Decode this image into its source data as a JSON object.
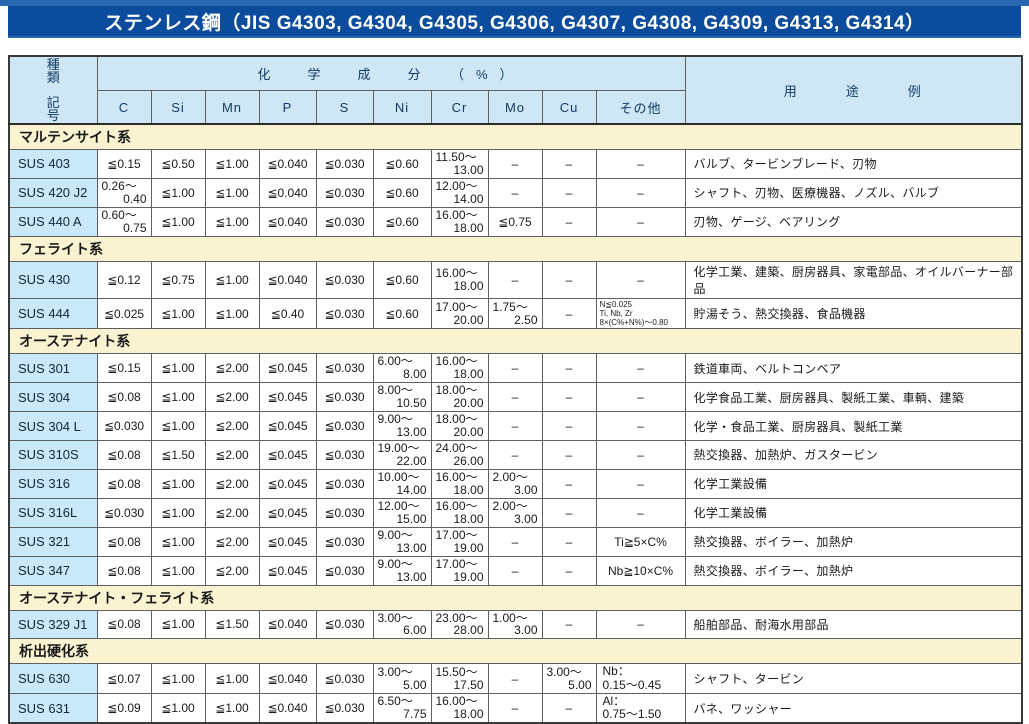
{
  "page": {
    "title": "ステンレス鋼（JIS G4303, G4304, G4305, G4306, G4307, G4308, G4309, G4313, G4314）"
  },
  "colors": {
    "top_rule_blue": "#2a67b2",
    "title_bar_blue": "#0b4c9c",
    "header_light_blue": "#cfe6f4",
    "grade_cell_blue": "#c9e9fa",
    "section_yellow": "#faf3d2",
    "border_gray": "#5f6062"
  },
  "table": {
    "kind_header": [
      "種　類",
      "記　号"
    ],
    "chem_header": "化　学　成　分　（%）",
    "usage_header": "用　途　例",
    "elements": [
      "C",
      "Si",
      "Mn",
      "P",
      "S",
      "Ni",
      "Cr",
      "Mo",
      "Cu",
      "その他"
    ],
    "sections": [
      {
        "name": "マルテンサイト系",
        "rows": [
          {
            "code": "SUS 403",
            "values": [
              {
                "v": "≦0.15"
              },
              {
                "v": "≦0.50"
              },
              {
                "v": "≦1.00"
              },
              {
                "v": "≦0.040"
              },
              {
                "v": "≦0.030"
              },
              {
                "v": "≦0.60"
              },
              {
                "v": "11.50～\n13.00",
                "s": "range"
              },
              {
                "v": "–"
              },
              {
                "v": "–"
              },
              {
                "v": "–"
              }
            ],
            "usage": "バルブ、タービンブレード、刃物"
          },
          {
            "code": "SUS 420 J2",
            "values": [
              {
                "v": "0.26～\n0.40",
                "s": "range"
              },
              {
                "v": "≦1.00"
              },
              {
                "v": "≦1.00"
              },
              {
                "v": "≦0.040"
              },
              {
                "v": "≦0.030"
              },
              {
                "v": "≦0.60"
              },
              {
                "v": "12.00～\n14.00",
                "s": "range"
              },
              {
                "v": "–"
              },
              {
                "v": "–"
              },
              {
                "v": "–"
              }
            ],
            "usage": "シャフト、刃物、医療機器、ノズル、バルブ"
          },
          {
            "code": "SUS 440 A",
            "values": [
              {
                "v": "0.60～\n0.75",
                "s": "range"
              },
              {
                "v": "≦1.00"
              },
              {
                "v": "≦1.00"
              },
              {
                "v": "≦0.040"
              },
              {
                "v": "≦0.030"
              },
              {
                "v": "≦0.60"
              },
              {
                "v": "16.00～\n18.00",
                "s": "range"
              },
              {
                "v": "≦0.75"
              },
              {
                "v": "–"
              },
              {
                "v": "–"
              }
            ],
            "usage": "刃物、ゲージ、ベアリング"
          }
        ]
      },
      {
        "name": "フェライト系",
        "rows": [
          {
            "code": "SUS 430",
            "values": [
              {
                "v": "≦0.12"
              },
              {
                "v": "≦0.75"
              },
              {
                "v": "≦1.00"
              },
              {
                "v": "≦0.040"
              },
              {
                "v": "≦0.030"
              },
              {
                "v": "≦0.60"
              },
              {
                "v": "16.00～\n18.00",
                "s": "range"
              },
              {
                "v": "–"
              },
              {
                "v": "–"
              },
              {
                "v": "–"
              }
            ],
            "usage": "化学工業、建築、厨房器具、家電部品、オイルバーナー部品"
          },
          {
            "code": "SUS 444",
            "values": [
              {
                "v": "≦0.025"
              },
              {
                "v": "≦1.00"
              },
              {
                "v": "≦1.00"
              },
              {
                "v": "≦0.40"
              },
              {
                "v": "≦0.030"
              },
              {
                "v": "≦0.60"
              },
              {
                "v": "17.00～\n20.00",
                "s": "range"
              },
              {
                "v": "1.75～\n2.50",
                "s": "range"
              },
              {
                "v": "–"
              },
              {
                "v": "N≦0.025\nTi, Nb, Zr\n8×(C%+N%)～0.80",
                "s": "small"
              }
            ],
            "usage": "貯湯そう、熱交換器、食品機器"
          }
        ]
      },
      {
        "name": "オーステナイト系",
        "rows": [
          {
            "code": "SUS 301",
            "values": [
              {
                "v": "≦0.15"
              },
              {
                "v": "≦1.00"
              },
              {
                "v": "≦2.00"
              },
              {
                "v": "≦0.045"
              },
              {
                "v": "≦0.030"
              },
              {
                "v": "6.00～\n8.00",
                "s": "range"
              },
              {
                "v": "16.00～\n18.00",
                "s": "range"
              },
              {
                "v": "–"
              },
              {
                "v": "–"
              },
              {
                "v": "–"
              }
            ],
            "usage": "鉄道車両、ベルトコンベア"
          },
          {
            "code": "SUS 304",
            "values": [
              {
                "v": "≦0.08"
              },
              {
                "v": "≦1.00"
              },
              {
                "v": "≦2.00"
              },
              {
                "v": "≦0.045"
              },
              {
                "v": "≦0.030"
              },
              {
                "v": "8.00～\n10.50",
                "s": "range"
              },
              {
                "v": "18.00～\n20.00",
                "s": "range"
              },
              {
                "v": "–"
              },
              {
                "v": "–"
              },
              {
                "v": "–"
              }
            ],
            "usage": "化学食品工業、厨房器具、製紙工業、車輌、建築"
          },
          {
            "code": "SUS 304 L",
            "values": [
              {
                "v": "≦0.030"
              },
              {
                "v": "≦1.00"
              },
              {
                "v": "≦2.00"
              },
              {
                "v": "≦0.045"
              },
              {
                "v": "≦0.030"
              },
              {
                "v": "9.00～\n13.00",
                "s": "range"
              },
              {
                "v": "18.00～\n20.00",
                "s": "range"
              },
              {
                "v": "–"
              },
              {
                "v": "–"
              },
              {
                "v": "–"
              }
            ],
            "usage": "化学・食品工業、厨房器具、製紙工業"
          },
          {
            "code": "SUS 310S",
            "values": [
              {
                "v": "≦0.08"
              },
              {
                "v": "≦1.50"
              },
              {
                "v": "≦2.00"
              },
              {
                "v": "≦0.045"
              },
              {
                "v": "≦0.030"
              },
              {
                "v": "19.00～\n22.00",
                "s": "range"
              },
              {
                "v": "24.00～\n26.00",
                "s": "range"
              },
              {
                "v": "–"
              },
              {
                "v": "–"
              },
              {
                "v": "–"
              }
            ],
            "usage": "熱交換器、加熱炉、ガスタービン"
          },
          {
            "code": "SUS 316",
            "values": [
              {
                "v": "≦0.08"
              },
              {
                "v": "≦1.00"
              },
              {
                "v": "≦2.00"
              },
              {
                "v": "≦0.045"
              },
              {
                "v": "≦0.030"
              },
              {
                "v": "10.00～\n14.00",
                "s": "range"
              },
              {
                "v": "16.00～\n18.00",
                "s": "range"
              },
              {
                "v": "2.00～\n3.00",
                "s": "range"
              },
              {
                "v": "–"
              },
              {
                "v": "–"
              }
            ],
            "usage": "化学工業設備"
          },
          {
            "code": "SUS 316L",
            "values": [
              {
                "v": "≦0.030"
              },
              {
                "v": "≦1.00"
              },
              {
                "v": "≦2.00"
              },
              {
                "v": "≦0.045"
              },
              {
                "v": "≦0.030"
              },
              {
                "v": "12.00～\n15.00",
                "s": "range"
              },
              {
                "v": "16.00～\n18.00",
                "s": "range"
              },
              {
                "v": "2.00～\n3.00",
                "s": "range"
              },
              {
                "v": "–"
              },
              {
                "v": "–"
              }
            ],
            "usage": "化学工業設備"
          },
          {
            "code": "SUS 321",
            "values": [
              {
                "v": "≦0.08"
              },
              {
                "v": "≦1.00"
              },
              {
                "v": "≦2.00"
              },
              {
                "v": "≦0.045"
              },
              {
                "v": "≦0.030"
              },
              {
                "v": "9.00～\n13.00",
                "s": "range"
              },
              {
                "v": "17.00～\n19.00",
                "s": "range"
              },
              {
                "v": "–"
              },
              {
                "v": "–"
              },
              {
                "v": "Ti≧5×C%"
              }
            ],
            "usage": "熱交換器、ボイラー、加熱炉"
          },
          {
            "code": "SUS 347",
            "values": [
              {
                "v": "≦0.08"
              },
              {
                "v": "≦1.00"
              },
              {
                "v": "≦2.00"
              },
              {
                "v": "≦0.045"
              },
              {
                "v": "≦0.030"
              },
              {
                "v": "9.00～\n13.00",
                "s": "range"
              },
              {
                "v": "17.00～\n19.00",
                "s": "range"
              },
              {
                "v": "–"
              },
              {
                "v": "–"
              },
              {
                "v": "Nb≧10×C%"
              }
            ],
            "usage": "熱交換器、ボイラー、加熱炉"
          }
        ]
      },
      {
        "name": "オーステナイト・フェライト系",
        "rows": [
          {
            "code": "SUS 329 J1",
            "values": [
              {
                "v": "≦0.08"
              },
              {
                "v": "≦1.00"
              },
              {
                "v": "≦1.50"
              },
              {
                "v": "≦0.040"
              },
              {
                "v": "≦0.030"
              },
              {
                "v": "3.00～\n6.00",
                "s": "range"
              },
              {
                "v": "23.00～\n28.00",
                "s": "range"
              },
              {
                "v": "1.00～\n3.00",
                "s": "range"
              },
              {
                "v": "–"
              },
              {
                "v": "–"
              }
            ],
            "usage": "船舶部品、耐海水用部品"
          }
        ]
      },
      {
        "name": "析出硬化系",
        "rows": [
          {
            "code": "SUS 630",
            "values": [
              {
                "v": "≦0.07"
              },
              {
                "v": "≦1.00"
              },
              {
                "v": "≦1.00"
              },
              {
                "v": "≦0.040"
              },
              {
                "v": "≦0.030"
              },
              {
                "v": "3.00～\n5.00",
                "s": "range"
              },
              {
                "v": "15.50～\n17.50",
                "s": "range"
              },
              {
                "v": "–"
              },
              {
                "v": "3.00～\n5.00",
                "s": "range"
              },
              {
                "v": "Nb：\n0.15～0.45",
                "s": "left2"
              }
            ],
            "usage": "シャフト、タービン"
          },
          {
            "code": "SUS 631",
            "values": [
              {
                "v": "≦0.09"
              },
              {
                "v": "≦1.00"
              },
              {
                "v": "≦1.00"
              },
              {
                "v": "≦0.040"
              },
              {
                "v": "≦0.030"
              },
              {
                "v": "6.50～\n7.75",
                "s": "range"
              },
              {
                "v": "16.00～\n18.00",
                "s": "range"
              },
              {
                "v": "–"
              },
              {
                "v": "–"
              },
              {
                "v": "Al：\n0.75～1.50",
                "s": "left2"
              }
            ],
            "usage": "バネ、ワッシャー"
          }
        ]
      }
    ]
  }
}
